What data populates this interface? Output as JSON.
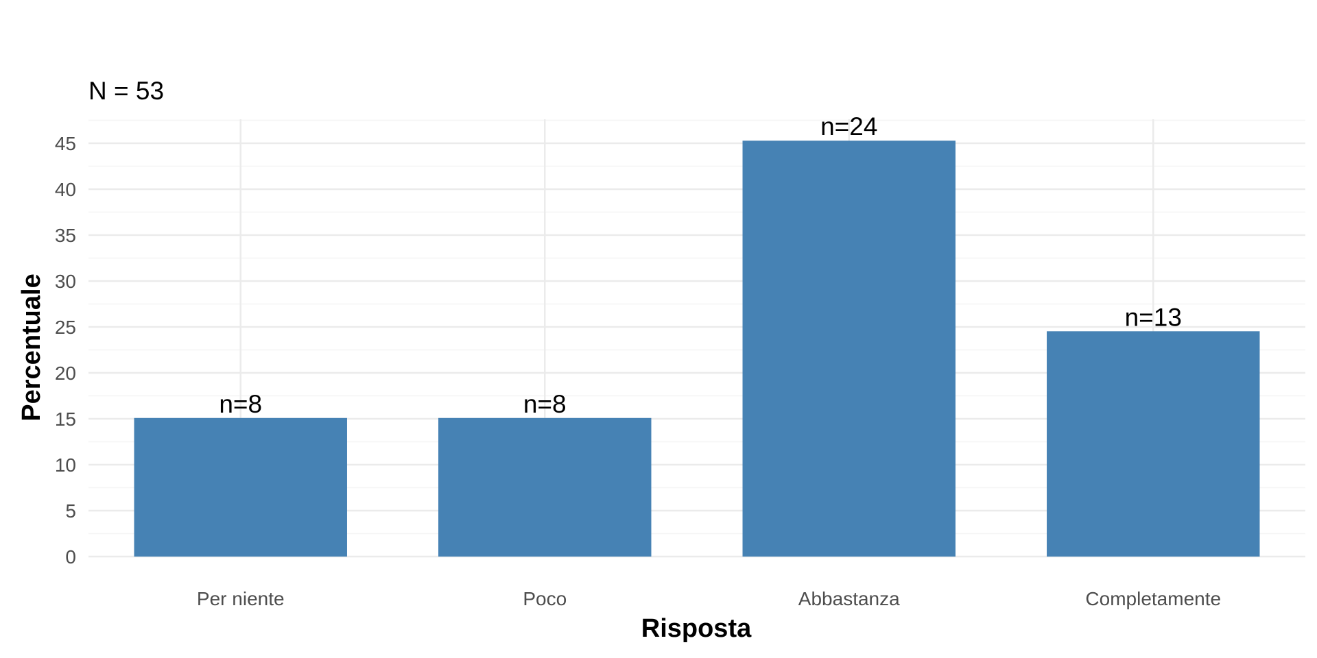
{
  "chart_data": {
    "type": "bar",
    "subtitle": "N = 53",
    "categories": [
      "Per niente",
      "Poco",
      "Abbastanza",
      "Completamente"
    ],
    "values": [
      15.09,
      15.09,
      45.28,
      24.53
    ],
    "bar_labels": [
      "n=8",
      "n=8",
      "n=24",
      "n=13"
    ],
    "xlabel": "Risposta",
    "ylabel": "Percentuale",
    "ylim": [
      0,
      47.5
    ],
    "yticks": [
      0,
      5,
      10,
      15,
      20,
      25,
      30,
      35,
      40,
      45
    ],
    "ytick_labels": [
      "0",
      "5",
      "10",
      "15",
      "20",
      "25",
      "30",
      "35",
      "40",
      "45"
    ],
    "grid": true,
    "legend": "none",
    "colors": {
      "bar": "#4682B4",
      "grid_major": "#EBEBEB",
      "grid_minor": "#F5F5F5"
    }
  }
}
